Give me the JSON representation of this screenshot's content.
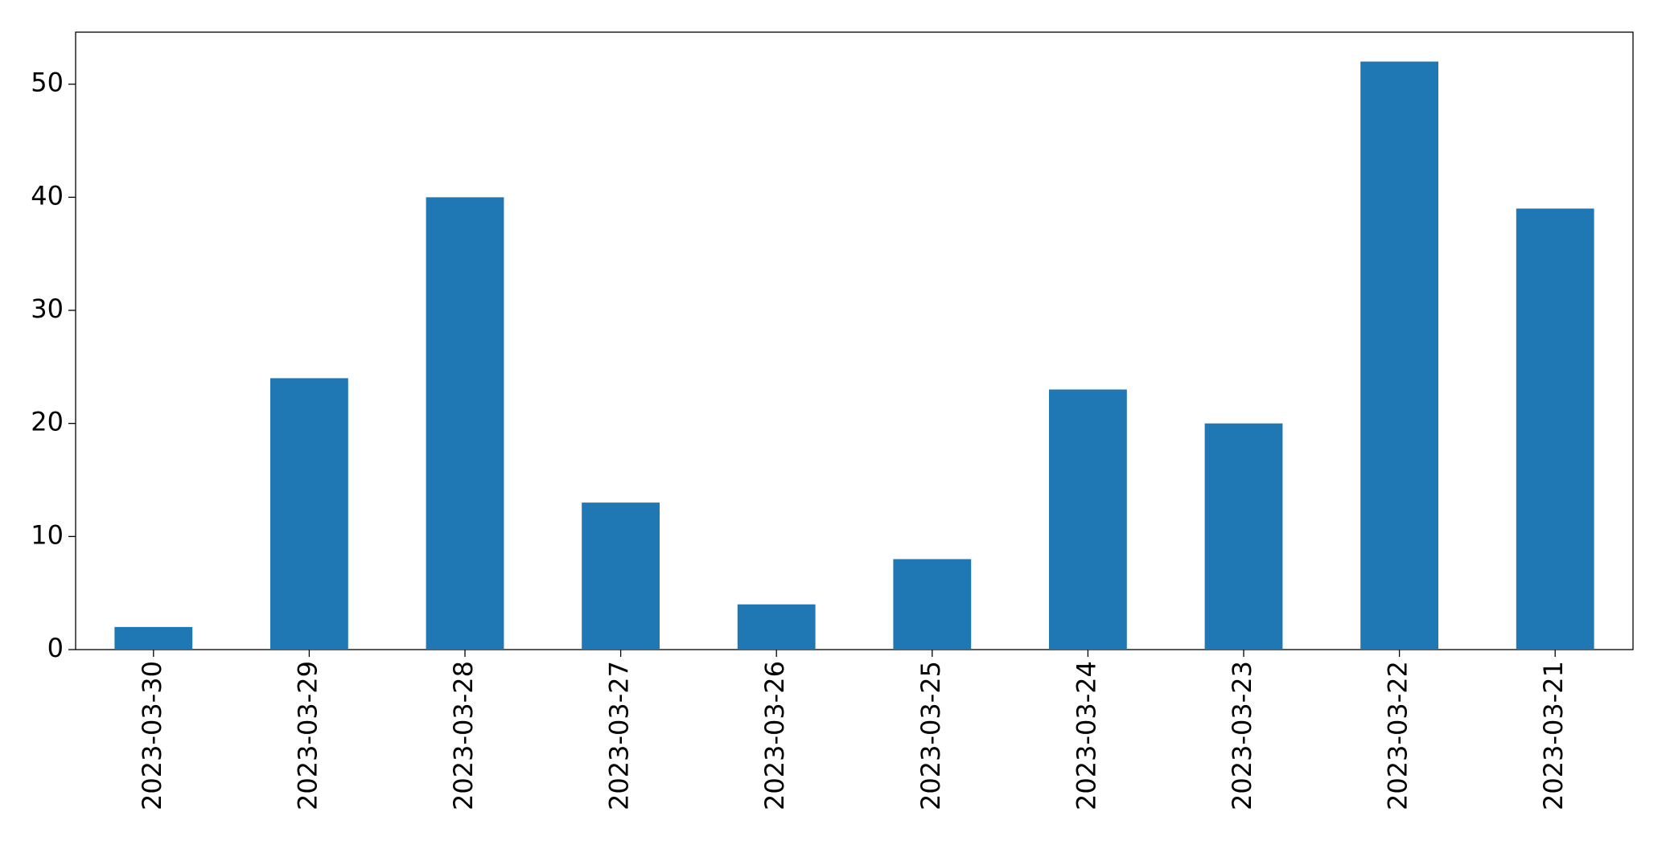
{
  "chart_data": {
    "type": "bar",
    "categories": [
      "2023-03-30",
      "2023-03-29",
      "2023-03-28",
      "2023-03-27",
      "2023-03-26",
      "2023-03-25",
      "2023-03-24",
      "2023-03-23",
      "2023-03-22",
      "2023-03-21"
    ],
    "values": [
      2,
      24,
      40,
      13,
      4,
      8,
      23,
      20,
      52,
      39
    ],
    "color": "#1f77b4",
    "ylim": [
      0,
      54.6
    ],
    "yticks": [
      0,
      10,
      20,
      30,
      40,
      50
    ],
    "grid": false
  }
}
